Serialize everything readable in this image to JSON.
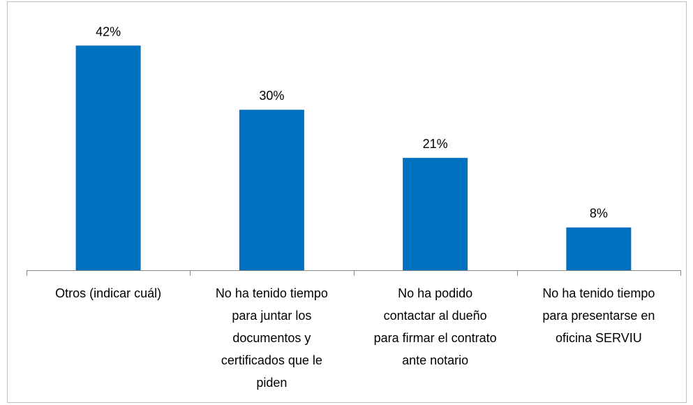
{
  "chart_data": {
    "type": "bar",
    "categories": [
      "Otros (indicar cuál)",
      "No ha tenido tiempo para juntar los documentos y certificados que le piden",
      "No ha podido contactar al dueño para firmar el contrato ante notario",
      "No ha tenido tiempo para presentarse en oficina SERVIU"
    ],
    "values": [
      42,
      30,
      21,
      8
    ],
    "value_labels": [
      "42%",
      "30%",
      "21%",
      "8%"
    ],
    "color": "#0070c0",
    "ylim": [
      0,
      50
    ]
  }
}
